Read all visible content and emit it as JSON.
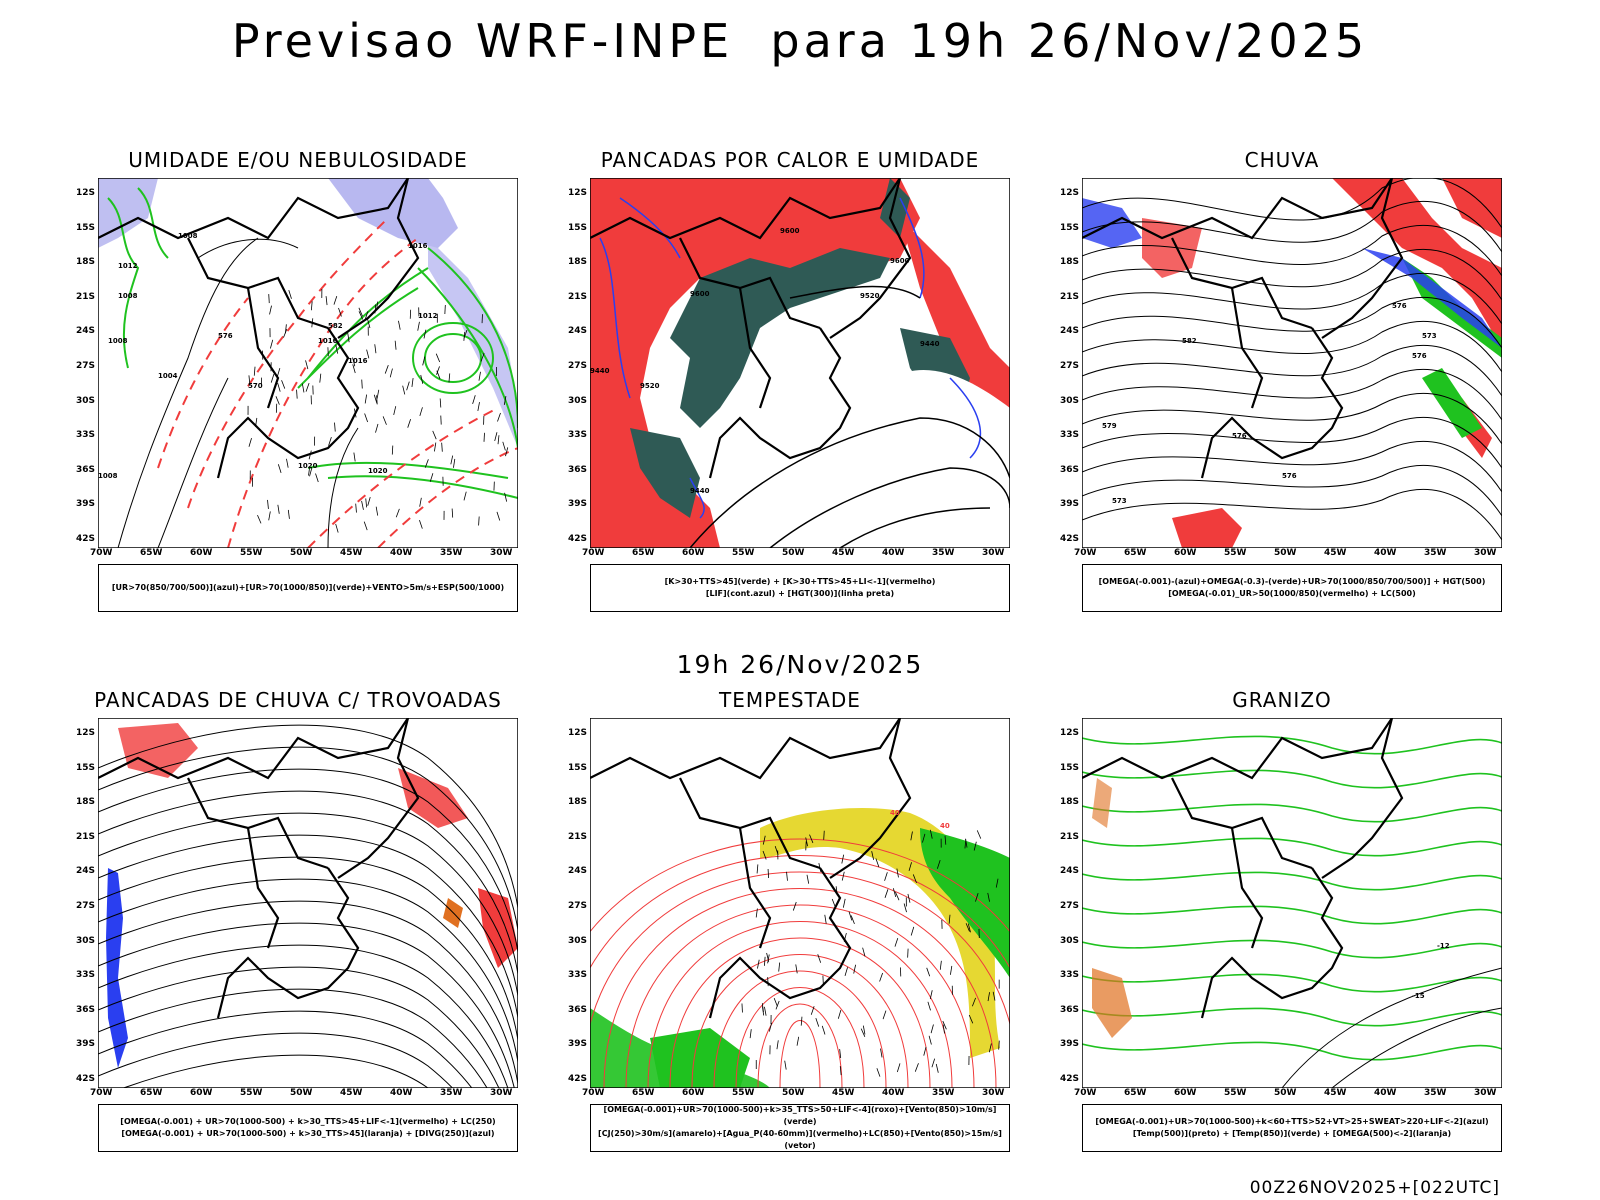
{
  "main_title": "Previsao WRF-INPE  para 19h 26/Nov/2025",
  "mid_title": "19h 26/Nov/2025",
  "footer": "00Z26NOV2025+[022UTC]",
  "axes": {
    "lat_labels": [
      "12S",
      "15S",
      "18S",
      "21S",
      "24S",
      "27S",
      "30S",
      "33S",
      "36S",
      "39S",
      "42S"
    ],
    "lon_labels": [
      "70W",
      "65W",
      "60W",
      "55W",
      "50W",
      "45W",
      "40W",
      "35W",
      "30W"
    ]
  },
  "panels": [
    {
      "title": "UMIDADE E/OU NEBULOSIDADE",
      "legend": [
        "[UR>70(850/700/500)](azul)+[UR>70(1000/850)](verde)+VENTO>5m/s+ESP(500/1000)"
      ],
      "labels": [
        "1008",
        "1008",
        "1016",
        "1012",
        "1016",
        "1016",
        "1008",
        "1020",
        "1020",
        "1004",
        "1012",
        "1008",
        "570",
        "576",
        "582"
      ]
    },
    {
      "title": "PANCADAS POR CALOR E UMIDADE",
      "legend": [
        "[K>30+TTS>45](verde) + [K>30+TTS>45+LI<-1](vermelho)",
        "[LIF](cont.azul) + [HGT(300)](linha preta)"
      ],
      "labels": [
        "9600",
        "9600",
        "9600",
        "9520",
        "9440",
        "9440",
        "9520",
        "9440"
      ]
    },
    {
      "title": "CHUVA",
      "legend": [
        "[OMEGA(-0.001)-(azul)+OMEGA(-0.3)-(verde)+UR>70(1000/850/700/500)] + HGT(500)",
        "[OMEGA(-0.01)_UR>50(1000/850)(vermelho) + LC(500)"
      ],
      "labels": [
        "582",
        "576",
        "576",
        "573",
        "576",
        "579",
        "573",
        "576"
      ]
    },
    {
      "title": "PANCADAS DE CHUVA C/ TROVOADAS",
      "legend": [
        "[OMEGA(-0.001) + UR>70(1000-500) + k>30_TTS>45+LIF<-1](vermelho) + LC(250)",
        "[OMEGA(-0.001) + UR>70(1000-500) + k>30_TTS>45](laranja) + [DIVG(250)](azul)"
      ],
      "labels": []
    },
    {
      "title": "TEMPESTADE",
      "legend": [
        "[OMEGA(-0.001)+UR>70(1000-500)+k>35_TTS>50+LIF<-4](roxo)+[Vento(850)>10m/s](verde)",
        "[CJ(250)>30m/s](amarelo)+[Agua_P(40-60mm)](vermelho)+LC(850)+[Vento(850)>15m/s](vetor)"
      ],
      "labels": [
        "40",
        "40"
      ]
    },
    {
      "title": "GRANIZO",
      "legend": [
        "[OMEGA(-0.001)+UR>70(1000-500)+k<60+TTS>52+VT>25+SWEAT>220+LIF<-2](azul)",
        "[Temp(500)](preto) + [Temp(850)](verde) + [OMEGA(500)<-2](laranja)"
      ],
      "labels": [
        "-12",
        "-15"
      ]
    }
  ],
  "colors": {
    "red": "#f03c3c",
    "green": "#1fc21f",
    "blue": "#2a3ff0",
    "lavender": "#b8b8f0",
    "darkteal": "#2f5a55",
    "yellow": "#e6d832",
    "orange": "#e07020"
  }
}
